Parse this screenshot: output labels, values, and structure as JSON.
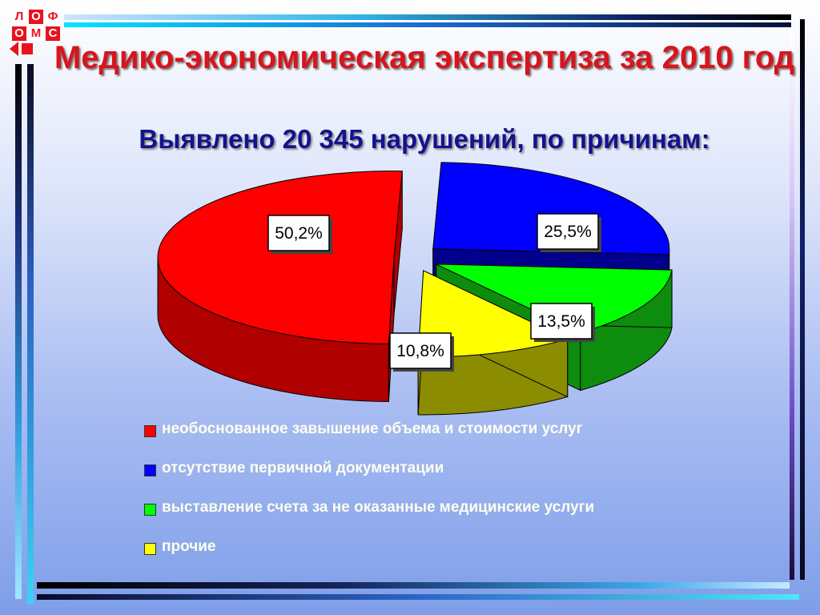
{
  "logo": {
    "letters": [
      "Л",
      "О",
      "Ф",
      "О",
      "М",
      "С"
    ]
  },
  "title": "Медико-экономическая экспертиза за 2010 год",
  "subtitle": "Выявлено 20 345 нарушений, по причинам:",
  "chart_data": {
    "type": "pie",
    "values": [
      50.2,
      25.5,
      13.5,
      10.8
    ],
    "labels": [
      "50,2%",
      "25,5%",
      "13,5%",
      "10,8%"
    ],
    "categories": [
      "необоснованное завышение объема и стоимости услуг",
      "отсутствие первичной документации",
      "выставление счета за не оказанные медицинские услуги",
      "прочие"
    ],
    "colors": [
      "#ff0000",
      "#0000ff",
      "#00ff00",
      "#ffff00"
    ],
    "side_colors": [
      "#b00000",
      "#00008c",
      "#0e8c0e",
      "#8c8c00"
    ],
    "legend": "bottom",
    "style": "3d-exploded"
  }
}
